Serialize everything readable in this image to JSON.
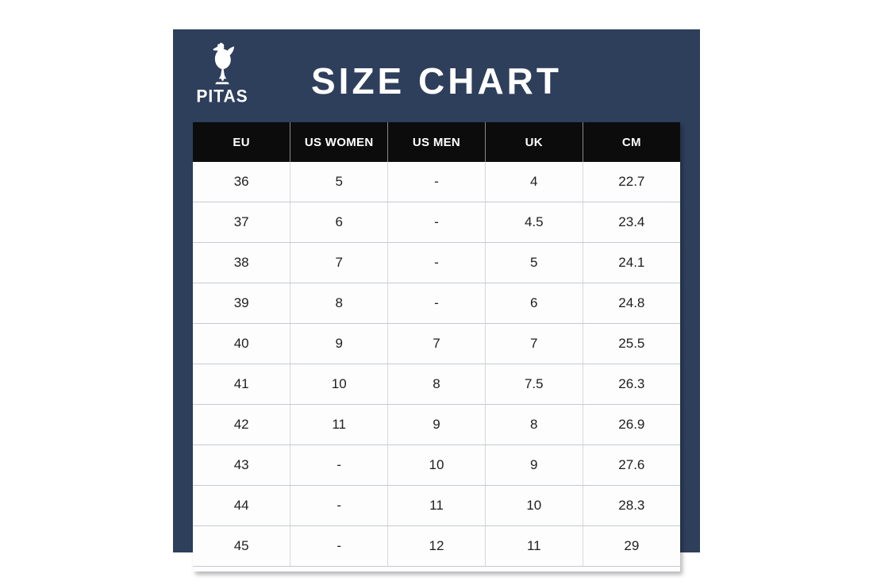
{
  "brand": {
    "name": "PITAS",
    "icon": "rooster-icon"
  },
  "title": "SIZE CHART",
  "colors": {
    "panel": "#2e3f5c",
    "header_bg": "#0c0c0c",
    "header_text": "#ffffff",
    "cell_text": "#1e1e1e",
    "grid_line": "#c6cbd1",
    "logo": "#ffffff"
  },
  "chart_data": {
    "type": "table",
    "title": "SIZE CHART",
    "columns": [
      "EU",
      "US WOMEN",
      "US MEN",
      "UK",
      "CM"
    ],
    "rows": [
      [
        "36",
        "5",
        "-",
        "4",
        "22.7"
      ],
      [
        "37",
        "6",
        "-",
        "4.5",
        "23.4"
      ],
      [
        "38",
        "7",
        "-",
        "5",
        "24.1"
      ],
      [
        "39",
        "8",
        "-",
        "6",
        "24.8"
      ],
      [
        "40",
        "9",
        "7",
        "7",
        "25.5"
      ],
      [
        "41",
        "10",
        "8",
        "7.5",
        "26.3"
      ],
      [
        "42",
        "11",
        "9",
        "8",
        "26.9"
      ],
      [
        "43",
        "-",
        "10",
        "9",
        "27.6"
      ],
      [
        "44",
        "-",
        "11",
        "10",
        "28.3"
      ],
      [
        "45",
        "-",
        "12",
        "11",
        "29"
      ]
    ]
  }
}
